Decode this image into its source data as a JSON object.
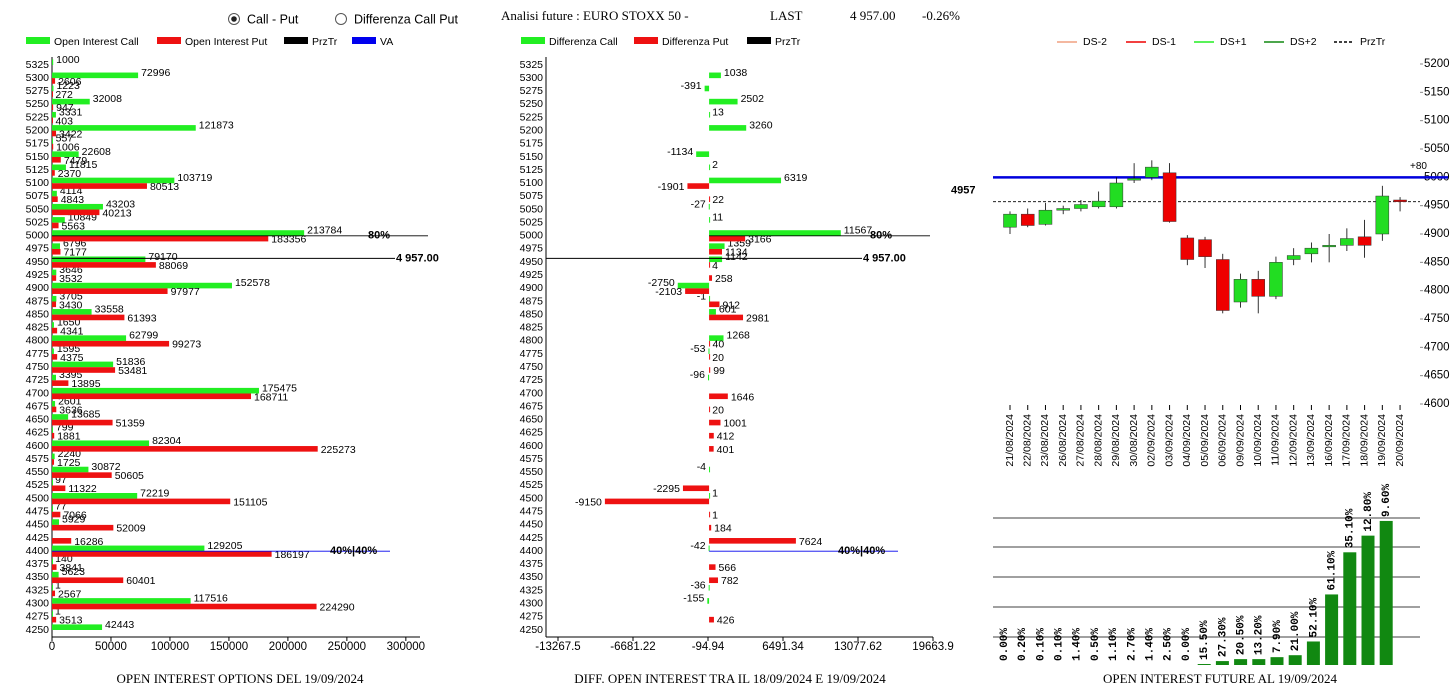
{
  "header": {
    "radio_call_put": "Call - Put",
    "radio_diff": "Differenza Call Put",
    "title": "Analisi future : EURO STOXX 50 -",
    "last_label": "LAST",
    "last_value": "4 957.00",
    "change": "-0.26%"
  },
  "chart_data": [
    {
      "type": "hbar",
      "title": "OPEN INTEREST OPTIONS DEL 19/09/2024",
      "categories": [
        5325,
        5300,
        5275,
        5250,
        5225,
        5200,
        5175,
        5150,
        5125,
        5100,
        5075,
        5050,
        5025,
        5000,
        4975,
        4950,
        4925,
        4900,
        4875,
        4850,
        4825,
        4800,
        4775,
        4750,
        4725,
        4700,
        4675,
        4650,
        4625,
        4600,
        4575,
        4550,
        4525,
        4500,
        4475,
        4450,
        4425,
        4400,
        4375,
        4350,
        4325,
        4300,
        4275,
        4250
      ],
      "series": [
        {
          "name": "Open Interest Call",
          "color": "#22ee22",
          "values": [
            1000,
            72996,
            1223,
            32008,
            3331,
            121873,
            557,
            22608,
            11815,
            103719,
            4114,
            43203,
            10849,
            213784,
            6796,
            79170,
            3646,
            152578,
            3705,
            33558,
            1650,
            62799,
            1595,
            51836,
            3395,
            175475,
            2601,
            13685,
            799,
            82304,
            2240,
            30872,
            97,
            72219,
            77,
            5929,
            null,
            129205,
            140,
            5623,
            1,
            117516,
            1,
            42443
          ]
        },
        {
          "name": "Open Interest Put",
          "color": "#ee1111",
          "values": [
            null,
            2606,
            272,
            947,
            403,
            3422,
            1006,
            7479,
            2370,
            80513,
            4843,
            40213,
            5563,
            183356,
            7177,
            88069,
            3532,
            97977,
            3430,
            61393,
            4341,
            99273,
            4375,
            53481,
            13895,
            168711,
            3636,
            51359,
            1881,
            225273,
            1725,
            50605,
            11322,
            151105,
            7066,
            52009,
            16286,
            186197,
            3841,
            60401,
            2567,
            224290,
            3513,
            null
          ]
        }
      ],
      "extra_legend": [
        {
          "name": "PrzTr",
          "color": "#000000"
        },
        {
          "name": "VA",
          "color": "#0000ee"
        }
      ],
      "xlim": [
        0,
        312000
      ],
      "xticks": [
        0,
        50000,
        100000,
        150000,
        200000,
        250000,
        300000
      ],
      "price": {
        "value": 4957,
        "label": "4 957.00"
      },
      "annotations": [
        {
          "strike": 5000,
          "text": "80%",
          "color": "#000000"
        },
        {
          "strike": 4400,
          "text": "40%|40%",
          "color": "#0000ee"
        }
      ]
    },
    {
      "type": "hbar",
      "title": "DIFF. OPEN INTEREST TRA IL 18/09/2024 E 19/09/2024",
      "categories": [
        5325,
        5300,
        5275,
        5250,
        5225,
        5200,
        5175,
        5150,
        5125,
        5100,
        5075,
        5050,
        5025,
        5000,
        4975,
        4950,
        4925,
        4900,
        4875,
        4850,
        4825,
        4800,
        4775,
        4750,
        4725,
        4700,
        4675,
        4650,
        4625,
        4600,
        4575,
        4550,
        4525,
        4500,
        4475,
        4450,
        4425,
        4400,
        4375,
        4350,
        4325,
        4300,
        4275,
        4250
      ],
      "series": [
        {
          "name": "Differenza Call",
          "color": "#22ee22",
          "values": [
            null,
            1038,
            -391,
            2502,
            13,
            3260,
            null,
            -1134,
            2,
            6319,
            null,
            -27,
            11,
            11567,
            1359,
            1142,
            null,
            -2750,
            -1,
            601,
            null,
            1268,
            -53,
            null,
            -96,
            null,
            null,
            null,
            null,
            null,
            null,
            -4,
            null,
            1,
            null,
            null,
            null,
            -42,
            null,
            null,
            -36,
            -155,
            null,
            null
          ]
        },
        {
          "name": "Differenza Put",
          "color": "#ee1111",
          "values": [
            null,
            null,
            null,
            null,
            null,
            null,
            null,
            null,
            null,
            -1901,
            22,
            null,
            null,
            3166,
            1134,
            4,
            258,
            -2103,
            912,
            2981,
            null,
            40,
            20,
            99,
            null,
            1646,
            20,
            1001,
            412,
            401,
            null,
            null,
            -2295,
            -9150,
            1,
            184,
            7624,
            null,
            566,
            782,
            null,
            null,
            426,
            null
          ]
        }
      ],
      "extra_legend": [
        {
          "name": "PrzTr",
          "color": "#000000"
        }
      ],
      "xlim": [
        -13267.5,
        19663.9
      ],
      "xticks": [
        -13267.5,
        -6681.22,
        -94.94,
        6491.34,
        13077.62,
        19663.9
      ],
      "price": {
        "value": 4957,
        "label": "4 957.00"
      },
      "annotations": [
        {
          "strike": 5000,
          "text": "80%",
          "color": "#000000"
        },
        {
          "strike": 4400,
          "text": "40%|40%",
          "color": "#0000ee"
        }
      ]
    },
    {
      "type": "candlestick",
      "x": [
        "21/08/2024",
        "22/08/2024",
        "23/08/2024",
        "26/08/2024",
        "27/08/2024",
        "28/08/2024",
        "29/08/2024",
        "30/08/2024",
        "02/09/2024",
        "03/09/2024",
        "04/09/2024",
        "05/09/2024",
        "06/09/2024",
        "09/09/2024",
        "10/09/2024",
        "11/09/2024",
        "12/09/2024",
        "13/09/2024",
        "16/09/2024",
        "17/09/2024",
        "18/09/2024",
        "19/09/2024",
        "20/09/2024"
      ],
      "open": [
        4912,
        4935,
        4917,
        4942,
        4945,
        4948,
        4948,
        4995,
        5000,
        5008,
        4893,
        4890,
        4855,
        4780,
        4820,
        4790,
        4855,
        4865,
        4878,
        4880,
        4895,
        4900,
        4960
      ],
      "high": [
        4940,
        4945,
        4955,
        4950,
        4960,
        4975,
        5000,
        5025,
        5030,
        5025,
        4898,
        4895,
        4865,
        4830,
        4835,
        4860,
        4875,
        4885,
        4900,
        4910,
        4925,
        4985,
        4965
      ],
      "low": [
        4900,
        4912,
        4915,
        4935,
        4940,
        4945,
        4945,
        4990,
        4995,
        4920,
        4845,
        4840,
        4760,
        4770,
        4760,
        4785,
        4845,
        4850,
        4850,
        4870,
        4858,
        4888,
        4940
      ],
      "close": [
        4935,
        4915,
        4942,
        4945,
        4952,
        4958,
        4990,
        4998,
        5018,
        4922,
        4855,
        4860,
        4765,
        4820,
        4790,
        4850,
        4862,
        4875,
        4880,
        4892,
        4880,
        4967,
        4957
      ],
      "up_color": "#22dd22",
      "down_color": "#ee0000",
      "legend": [
        {
          "name": "DS-2",
          "color": "#f0a080",
          "dashed": false
        },
        {
          "name": "DS-1",
          "color": "#ee0000",
          "dashed": false
        },
        {
          "name": "DS+1",
          "color": "#22ee22",
          "dashed": false
        },
        {
          "name": "DS+2",
          "color": "#118811",
          "dashed": false
        },
        {
          "name": "PrzTr",
          "color": "#000000",
          "dashed": true
        }
      ],
      "ylim": [
        4600,
        5200
      ],
      "yticks": [
        4600,
        4650,
        4700,
        4750,
        4800,
        4850,
        4900,
        4950,
        5000,
        5050,
        5100,
        5150,
        5200
      ],
      "hline": {
        "value": 5000,
        "color": "#0000dd",
        "label": "+80"
      },
      "price": {
        "value": 4957,
        "label": "4957"
      }
    },
    {
      "type": "bar",
      "title": "OPEN INTEREST FUTURE AL 19/09/2024",
      "color": "#118811",
      "values": [
        0,
        0,
        0,
        0,
        0,
        0,
        0,
        0,
        0,
        0,
        0,
        1,
        4,
        6,
        6,
        8,
        10,
        24,
        72,
        115,
        132,
        147
      ],
      "annotations": [
        "0.00%",
        "0.20%",
        "0.10%",
        "0.10%",
        "1.40%",
        "0.50%",
        "1.10%",
        "2.70%",
        "1.40%",
        "2.50%",
        "0.00%",
        "15.50%",
        "27.30%",
        "20.50%",
        "13.20%",
        "7.90%",
        "21.00%",
        "52.10%",
        "61.10%",
        "35.10%",
        "12.80%",
        "9.60%"
      ],
      "ylim": [
        0,
        150
      ]
    }
  ]
}
